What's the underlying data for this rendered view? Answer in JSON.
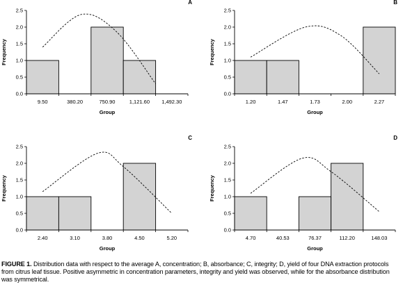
{
  "caption": {
    "label": "FIGURE 1.",
    "text": "Distribution data with respect to the average A, concentration; B, absorbance; C, integrity; D, yield of four DNA extraction protocols from citrus leaf tissue. Positive asymmetric in concentration parameters, integrity and yield was observed, while for the absorbance distribution was symmetrical."
  },
  "colors": {
    "bar_fill": "#d3d3d3",
    "bar_stroke": "#000000",
    "curve": "#000000"
  },
  "chart_data": [
    {
      "panel": "A",
      "type": "bar",
      "categories": [
        "9.50",
        "380.20",
        "750.90",
        "1,121.60",
        "1,492.30"
      ],
      "values": [
        1,
        0,
        2,
        1,
        0
      ],
      "xlabel": "Group",
      "ylabel": "Frequency",
      "ylim": [
        0,
        2.5
      ],
      "yticks": [
        "0.0",
        "0.5",
        "1.0",
        "1.5",
        "2.0",
        "2.5"
      ],
      "curve": "dashed normal curve",
      "curve_points": [
        [
          0.5,
          1.4
        ],
        [
          1.7,
          2.38
        ],
        [
          2.8,
          1.85
        ],
        [
          4.0,
          0.3
        ]
      ]
    },
    {
      "panel": "B",
      "type": "bar",
      "categories": [
        "1.20",
        "1.47",
        "1.73",
        "2.00",
        "2.27"
      ],
      "values": [
        1,
        1,
        0,
        0,
        2
      ],
      "xlabel": "Group",
      "ylabel": "Frequency",
      "ylim": [
        0,
        2.5
      ],
      "yticks": [
        "0.0",
        "0.5",
        "1.0",
        "1.5",
        "2.0",
        "2.5"
      ],
      "curve": "dashed normal curve",
      "curve_points": [
        [
          0.5,
          1.1
        ],
        [
          2.2,
          2.0
        ],
        [
          3.3,
          1.75
        ],
        [
          4.5,
          0.6
        ]
      ]
    },
    {
      "panel": "C",
      "type": "bar",
      "categories": [
        "2.40",
        "3.10",
        "3.80",
        "4.50",
        "5.20"
      ],
      "values": [
        1,
        1,
        0,
        2,
        0
      ],
      "xlabel": "Group",
      "ylabel": "Frequency",
      "ylim": [
        0,
        2.5
      ],
      "yticks": [
        "0.0",
        "0.5",
        "1.0",
        "1.5",
        "2.0",
        "2.5"
      ],
      "curve": "dashed normal curve",
      "curve_points": [
        [
          0.5,
          1.15
        ],
        [
          2.2,
          2.3
        ],
        [
          3.0,
          1.9
        ],
        [
          4.5,
          0.5
        ]
      ]
    },
    {
      "panel": "D",
      "type": "bar",
      "categories": [
        "4.70",
        "40.53",
        "76.37",
        "112.20",
        "148.03"
      ],
      "values": [
        1,
        0,
        1,
        2,
        0
      ],
      "xlabel": "Group",
      "ylabel": "Frequency",
      "ylim": [
        0,
        2.5
      ],
      "yticks": [
        "0.0",
        "0.5",
        "1.0",
        "1.5",
        "2.0",
        "2.5"
      ],
      "curve": "dashed normal curve",
      "curve_points": [
        [
          0.5,
          1.1
        ],
        [
          2.1,
          2.15
        ],
        [
          3.0,
          1.75
        ],
        [
          4.5,
          0.55
        ]
      ]
    }
  ]
}
